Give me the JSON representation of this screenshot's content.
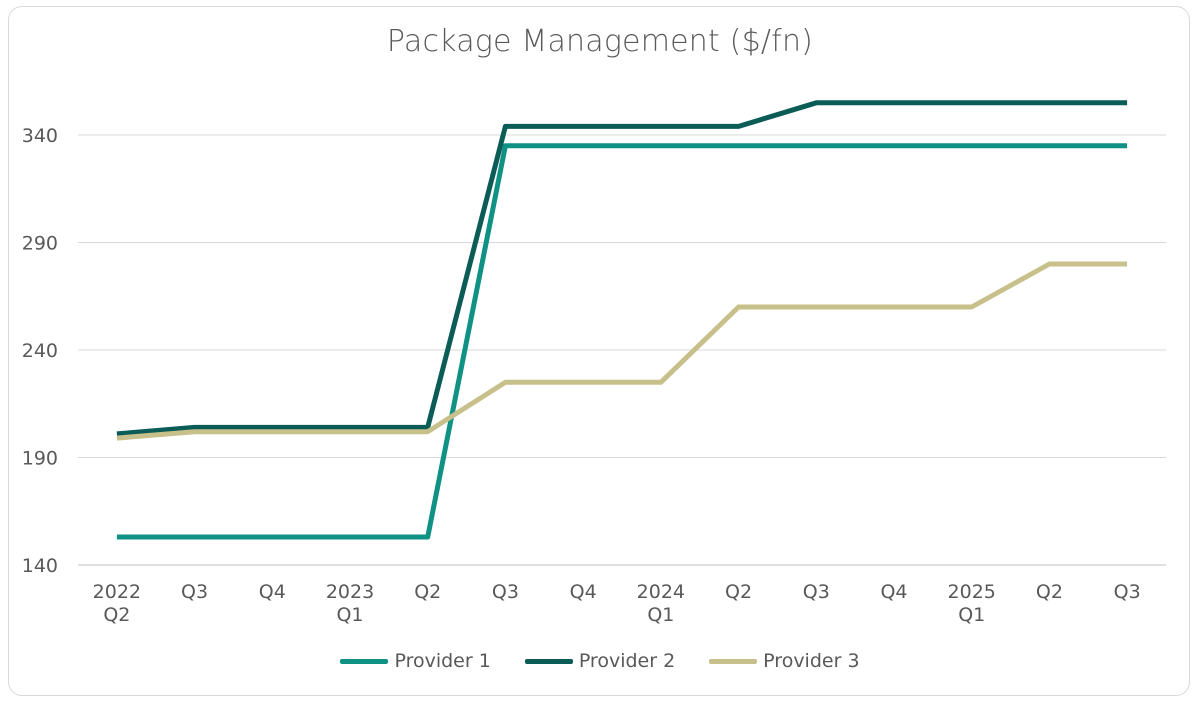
{
  "chart_data": {
    "type": "line",
    "title": "Package Management ($/fn)",
    "xlabel": "",
    "ylabel": "",
    "categories": [
      [
        "2022",
        "Q2"
      ],
      [
        "Q3"
      ],
      [
        "Q4"
      ],
      [
        "2023",
        "Q1"
      ],
      [
        "Q2"
      ],
      [
        "Q3"
      ],
      [
        "Q4"
      ],
      [
        "2024",
        "Q1"
      ],
      [
        "Q2"
      ],
      [
        "Q3"
      ],
      [
        "Q4"
      ],
      [
        "2025",
        "Q1"
      ],
      [
        "Q2"
      ],
      [
        "Q3"
      ]
    ],
    "ylim": [
      140,
      340
    ],
    "yticks": [
      140,
      190,
      240,
      290,
      340
    ],
    "grid": "horizontal",
    "legend": "bottom",
    "series": [
      {
        "name": "Provider 1",
        "color": "#0f9183",
        "values": [
          153,
          153,
          153,
          153,
          153,
          335,
          335,
          335,
          335,
          335,
          335,
          335,
          335,
          335
        ]
      },
      {
        "name": "Provider 2",
        "color": "#0b5c57",
        "values": [
          201,
          204,
          204,
          204,
          204,
          344,
          344,
          344,
          344,
          355,
          355,
          355,
          355,
          355
        ]
      },
      {
        "name": "Provider 3",
        "color": "#c8c08a",
        "values": [
          199,
          202,
          202,
          202,
          202,
          225,
          225,
          225,
          260,
          260,
          260,
          260,
          280,
          280
        ]
      }
    ]
  }
}
